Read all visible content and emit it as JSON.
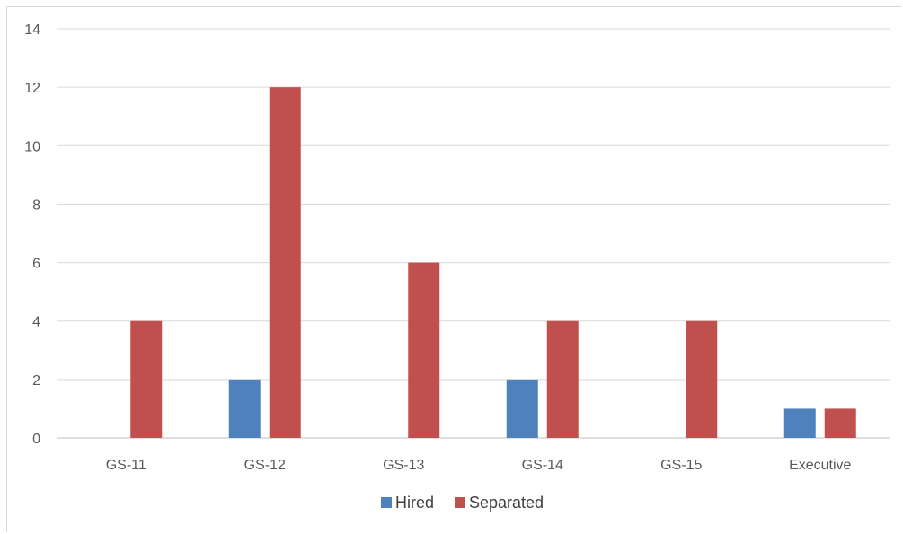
{
  "chart_data": {
    "type": "bar",
    "categories": [
      "GS-11",
      "GS-12",
      "GS-13",
      "GS-14",
      "GS-15",
      "Executive"
    ],
    "series": [
      {
        "name": "Hired",
        "values": [
          0,
          2,
          0,
          2,
          0,
          1
        ],
        "color": "#4f81bd"
      },
      {
        "name": "Separated",
        "values": [
          4,
          12,
          6,
          4,
          4,
          1
        ],
        "color": "#c0504d"
      }
    ],
    "ylim": [
      0,
      14
    ],
    "yticks": [
      0,
      2,
      4,
      6,
      8,
      10,
      12,
      14
    ],
    "grid": true,
    "legend_position": "bottom",
    "title": "",
    "xlabel": "",
    "ylabel": ""
  }
}
